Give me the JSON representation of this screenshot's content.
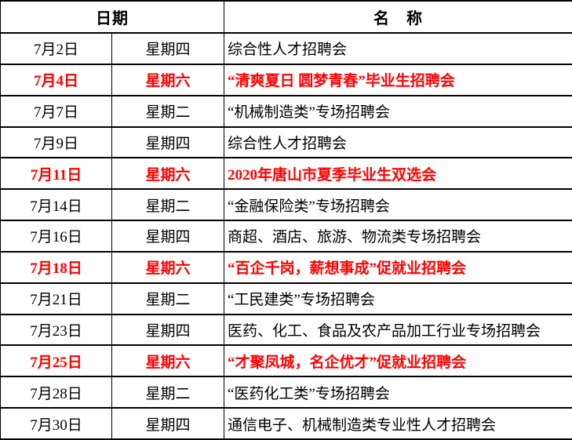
{
  "table": {
    "header": {
      "date_label": "日期",
      "name_label": "名　称"
    },
    "rows": [
      {
        "date": "7月2日",
        "weekday": "星期四",
        "name": "综合性人才招聘会",
        "highlight": false
      },
      {
        "date": "7月4日",
        "weekday": "星期六",
        "name": "“清爽夏日 圆梦青春”毕业生招聘会",
        "highlight": true
      },
      {
        "date": "7月7日",
        "weekday": "星期二",
        "name": "“机械制造类”专场招聘会",
        "highlight": false
      },
      {
        "date": "7月9日",
        "weekday": "星期四",
        "name": "综合性人才招聘会",
        "highlight": false
      },
      {
        "date": "7月11日",
        "weekday": "星期六",
        "name": "2020年唐山市夏季毕业生双选会",
        "highlight": true
      },
      {
        "date": "7月14日",
        "weekday": "星期二",
        "name": "“金融保险类”专场招聘会",
        "highlight": false
      },
      {
        "date": "7月16日",
        "weekday": "星期四",
        "name": "商超、酒店、旅游、物流类专场招聘会",
        "highlight": false
      },
      {
        "date": "7月18日",
        "weekday": "星期六",
        "name": "“百企千岗，薪想事成”促就业招聘会",
        "highlight": true
      },
      {
        "date": "7月21日",
        "weekday": "星期二",
        "name": "“工民建类”专场招聘会",
        "highlight": false
      },
      {
        "date": "7月23日",
        "weekday": "星期四",
        "name": "医药、化工、食品及农产品加工行业专场招聘会",
        "highlight": false
      },
      {
        "date": "7月25日",
        "weekday": "星期六",
        "name": "“才聚凤城，名企优才”促就业招聘会",
        "highlight": true
      },
      {
        "date": "7月28日",
        "weekday": "星期二",
        "name": "“医药化工类”专场招聘会",
        "highlight": false
      },
      {
        "date": "7月30日",
        "weekday": "星期四",
        "name": "通信电子、机械制造类专业性人才招聘会",
        "highlight": false
      }
    ],
    "colors": {
      "highlight_text": "#ff0000",
      "body_text": "#000000",
      "border": "#000000",
      "background": "#ffffff"
    }
  }
}
